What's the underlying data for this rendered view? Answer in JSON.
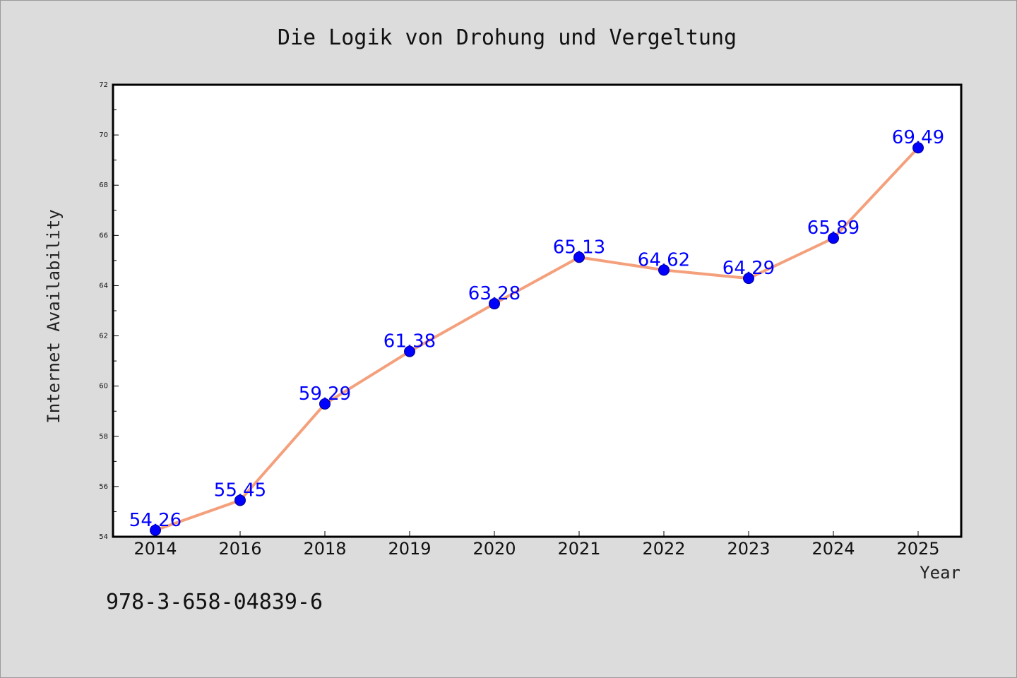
{
  "chart_data": {
    "type": "line",
    "title": "Die Logik von Drohung und Vergeltung",
    "xlabel": "Year",
    "ylabel": "Internet Availability",
    "categories": [
      "2014",
      "2016",
      "2018",
      "2019",
      "2020",
      "2021",
      "2022",
      "2023",
      "2024",
      "2025"
    ],
    "series": [
      {
        "values": [
          54.26,
          55.45,
          59.29,
          61.38,
          63.28,
          65.13,
          64.62,
          64.29,
          65.89,
          69.49
        ],
        "line_color": "#f4a07c",
        "marker_color": "#0000ff",
        "label_color": "#0000ff"
      }
    ],
    "ylim": [
      54,
      72
    ],
    "yticks": [
      54,
      56,
      58,
      60,
      62,
      64,
      66,
      68,
      70,
      72
    ],
    "grid": false,
    "legend": "none"
  },
  "footer": {
    "isbn": "978-3-658-04839-6"
  }
}
